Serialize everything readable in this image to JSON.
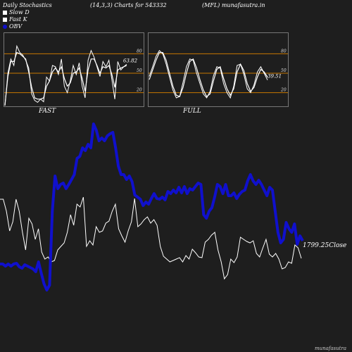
{
  "header": {
    "left": "Daily Stochastics",
    "params": "(14,3,3) Charts for 543332",
    "right": "(MFL) munafasutra.in"
  },
  "legend": [
    {
      "label": "Slow  D",
      "color": "#ffffff"
    },
    {
      "label": "Fast  K",
      "color": "#ffffff"
    },
    {
      "label": "OBV",
      "color": "#1010cc"
    }
  ],
  "panels": [
    {
      "label": "FAST",
      "value_label": "63.82",
      "levels": [
        "80",
        "50",
        "20"
      ]
    },
    {
      "label": "FULL",
      "value_label": "39.51",
      "levels": [
        "80",
        "50",
        "20"
      ]
    }
  ],
  "close_label": "1799.25Close",
  "footer": "munafasutra",
  "colors": {
    "background": "#1e1e1e",
    "obv": "#1010cc",
    "price": "#ffffff",
    "band": "#c87800"
  },
  "chart_data": [
    {
      "type": "line",
      "title": "FAST",
      "ylim": [
        0,
        100
      ],
      "levels": [
        80,
        50,
        20
      ],
      "series": [
        {
          "name": "Fast K",
          "values": [
            0,
            50,
            72,
            62,
            92,
            82,
            78,
            70,
            58,
            18,
            8,
            5,
            10,
            6,
            44,
            38,
            62,
            60,
            48,
            72,
            30,
            20,
            38,
            62,
            48,
            66,
            30,
            12,
            70,
            85,
            75,
            60,
            45,
            68,
            60,
            70,
            40,
            10,
            68,
            55,
            60,
            63.82
          ]
        },
        {
          "name": "Slow  D",
          "values": [
            0,
            45,
            68,
            68,
            82,
            80,
            76,
            72,
            52,
            28,
            12,
            10,
            10,
            12,
            30,
            38,
            52,
            58,
            52,
            60,
            42,
            30,
            35,
            50,
            52,
            58,
            42,
            22,
            55,
            72,
            72,
            62,
            50,
            60,
            58,
            62,
            48,
            28,
            55,
            58,
            60,
            62
          ]
        }
      ]
    },
    {
      "type": "line",
      "title": "FULL",
      "ylim": [
        0,
        100
      ],
      "levels": [
        80,
        50,
        20
      ],
      "series": [
        {
          "name": "Fast K",
          "values": [
            45,
            60,
            76,
            85,
            80,
            64,
            44,
            24,
            12,
            14,
            36,
            60,
            72,
            70,
            50,
            34,
            18,
            12,
            22,
            46,
            60,
            58,
            34,
            20,
            12,
            30,
            62,
            64,
            48,
            26,
            20,
            32,
            52,
            60,
            50,
            39.51
          ]
        },
        {
          "name": "Slow  D",
          "values": [
            40,
            55,
            70,
            82,
            82,
            70,
            50,
            30,
            16,
            14,
            28,
            50,
            68,
            72,
            58,
            40,
            24,
            14,
            18,
            38,
            56,
            60,
            42,
            26,
            16,
            26,
            52,
            64,
            54,
            34,
            22,
            28,
            44,
            56,
            52,
            44
          ]
        }
      ]
    },
    {
      "type": "line",
      "title": "OBV / Close",
      "series": [
        {
          "name": "OBV",
          "values": [
            375,
            375,
            378,
            375,
            378,
            375,
            374,
            379,
            381,
            376,
            378,
            380,
            382,
            386,
            372,
            388,
            403,
            412,
            405,
            300,
            250,
            268,
            262,
            260,
            268,
            262,
            255,
            248,
            225,
            222,
            210,
            214,
            205,
            210,
            176,
            185,
            200,
            196,
            200,
            193,
            190,
            188,
            210,
            236,
            248,
            248,
            255,
            250,
            258,
            277,
            280,
            283,
            292,
            287,
            290,
            282,
            275,
            282,
            283,
            280,
            284,
            272,
            275,
            270,
            274,
            266,
            274,
            265,
            275,
            268,
            270,
            265,
            260,
            262,
            305,
            310,
            300,
            295,
            280,
            262,
            265,
            275,
            262,
            278,
            278,
            274,
            282,
            276,
            272,
            270,
            257,
            248,
            257,
            262,
            256,
            262,
            270,
            278,
            266,
            270,
            300,
            330,
            345,
            340,
            316,
            325,
            330,
            318,
            347,
            335,
            342
          ]
        },
        {
          "name": "Close",
          "values": [
            283,
            283,
            300,
            328,
            315,
            283,
            300,
            330,
            355,
            310,
            318,
            340,
            325,
            358,
            368,
            365,
            372,
            370,
            355,
            350,
            345,
            330,
            305,
            320,
            290,
            294,
            280,
            350,
            342,
            348,
            322,
            330,
            328,
            317,
            314,
            300,
            290,
            325,
            335,
            344,
            328,
            315,
            282,
            322,
            318,
            312,
            308,
            317,
            312,
            320,
            350,
            364,
            368,
            372,
            370,
            368,
            366,
            372,
            363,
            368,
            354,
            359,
            365,
            366,
            344,
            340,
            334,
            330,
            355,
            372,
            396,
            390,
            368,
            373,
            365,
            337,
            340,
            343,
            345,
            342,
            360,
            365,
            352,
            340,
            361,
            365,
            360,
            368,
            382,
            380,
            372,
            374,
            348,
            352,
            367
          ]
        }
      ]
    }
  ]
}
